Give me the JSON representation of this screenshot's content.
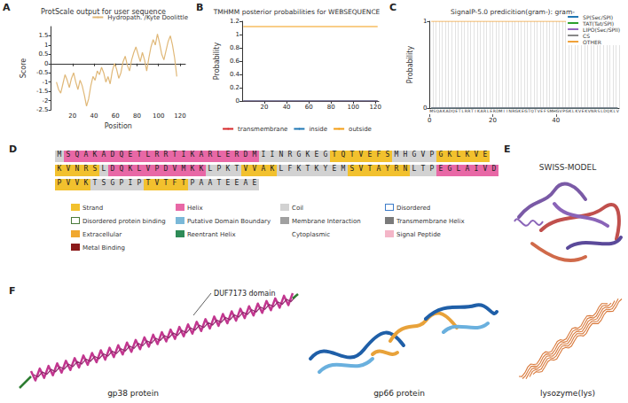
{
  "chart_data": [
    {
      "panel": "A",
      "type": "line",
      "title": "ProtScale output for user sequence",
      "x_label": "Position",
      "y_label": "Score",
      "x": [
        5,
        7,
        9,
        11,
        13,
        15,
        17,
        19,
        21,
        23,
        25,
        27,
        29,
        31,
        33,
        35,
        37,
        39,
        41,
        43,
        45,
        47,
        49,
        51,
        53,
        55,
        57,
        59,
        61,
        63,
        65,
        67,
        69,
        71,
        73,
        75,
        77,
        79,
        81,
        83,
        85,
        87,
        89,
        91,
        93,
        95,
        97,
        99,
        101,
        103,
        105,
        107,
        109,
        111,
        113,
        115,
        117
      ],
      "series": [
        {
          "name": "Hydropath. /Kyte Doolittle",
          "color": "#e0b878",
          "values": [
            -1.0,
            -1.4,
            -1.6,
            -1.1,
            -0.6,
            -0.9,
            -1.3,
            -0.8,
            -0.5,
            -1.0,
            -1.4,
            -0.9,
            -1.2,
            -1.7,
            -2.3,
            -1.9,
            -1.2,
            -0.7,
            -0.9,
            -0.4,
            -0.6,
            -0.2,
            -0.5,
            -1.0,
            -0.7,
            -1.1,
            -0.4,
            0.0,
            -0.3,
            -0.8,
            -0.5,
            0.1,
            0.4,
            -0.1,
            -0.4,
            0.2,
            0.6,
            0.9,
            0.5,
            0.1,
            0.6,
            0.2,
            -0.4,
            0.3,
            0.9,
            1.3,
            1.0,
            1.6,
            1.1,
            0.5,
            0.2,
            0.7,
            1.2,
            1.5,
            1.0,
            0.3,
            -0.7
          ]
        }
      ],
      "xlim": [
        0,
        125
      ],
      "xticks": [
        20,
        40,
        60,
        80,
        100,
        120
      ],
      "ylim": [
        -2.5,
        2
      ],
      "yticks": [
        -2.5,
        -2,
        -1.5,
        -1,
        -0.5,
        0,
        0.5,
        1,
        1.5
      ],
      "legend": "top-right",
      "grid": false
    },
    {
      "panel": "B",
      "type": "line",
      "title": "TMHMM posterior probabilities for WEBSEQUENCE",
      "y_label": "Probability",
      "x": [
        1,
        122
      ],
      "series": [
        {
          "name": "transmembrane",
          "color": "#d62728",
          "values": [
            0,
            0
          ]
        },
        {
          "name": "inside",
          "color": "#1f77b4",
          "values": [
            0,
            0
          ]
        },
        {
          "name": "outside",
          "color": "#f39c12",
          "values": [
            1.12,
            1.12
          ]
        }
      ],
      "xlim": [
        0,
        123
      ],
      "xticks": [
        20,
        40,
        60,
        80,
        100,
        120
      ],
      "ylim": [
        0,
        1.2
      ],
      "yticks": [
        0,
        0.2,
        0.4,
        0.6,
        0.8,
        1,
        1.2
      ],
      "legend": "bottom",
      "grid": false
    },
    {
      "panel": "C",
      "type": "line",
      "title": "SignalP-5.0 predicition(gram-): gram-",
      "y_label": "Probability",
      "categories": [
        "M",
        "S",
        "Q",
        "A",
        "K",
        "A",
        "D",
        "Q",
        "E",
        "T",
        "L",
        "R",
        "R",
        "T",
        "I",
        "K",
        "A",
        "R",
        "L",
        "E",
        "R",
        "D",
        "M",
        "I",
        "I",
        "N",
        "R",
        "G",
        "K",
        "E",
        "G",
        "T",
        "Q",
        "T",
        "V",
        "E",
        "F",
        "S",
        "M",
        "H",
        "G",
        "V",
        "P",
        "G",
        "K",
        "L",
        "K",
        "V",
        "E",
        "K",
        "V",
        "N",
        "R",
        "S",
        "L",
        "D",
        "Q",
        "K",
        "L",
        "V"
      ],
      "series": [
        {
          "name": "SP(Sec/SPI)",
          "color": "#1f77b4",
          "values": [
            0,
            0,
            0,
            0,
            0,
            0,
            0,
            0,
            0,
            0,
            0,
            0,
            0,
            0,
            0,
            0,
            0,
            0,
            0,
            0,
            0,
            0,
            0,
            0,
            0,
            0,
            0,
            0,
            0,
            0,
            0,
            0,
            0,
            0,
            0,
            0,
            0,
            0,
            0,
            0,
            0,
            0,
            0,
            0,
            0,
            0,
            0,
            0,
            0,
            0,
            0,
            0,
            0,
            0,
            0,
            0,
            0,
            0,
            0,
            0
          ]
        },
        {
          "name": "TAT(Tat/SPI)",
          "color": "#2ca02c",
          "values": [
            0,
            0,
            0,
            0,
            0,
            0,
            0,
            0,
            0,
            0,
            0,
            0,
            0,
            0,
            0,
            0,
            0,
            0,
            0,
            0,
            0,
            0,
            0,
            0,
            0,
            0,
            0,
            0,
            0,
            0,
            0,
            0,
            0,
            0,
            0,
            0,
            0,
            0,
            0,
            0,
            0,
            0,
            0,
            0,
            0,
            0,
            0,
            0,
            0,
            0,
            0,
            0,
            0,
            0,
            0,
            0,
            0,
            0,
            0,
            0
          ]
        },
        {
          "name": "LIPO(Sec/SPII)",
          "color": "#9467bd",
          "values": [
            0,
            0,
            0,
            0,
            0,
            0,
            0,
            0,
            0,
            0,
            0,
            0,
            0,
            0,
            0,
            0,
            0,
            0,
            0,
            0,
            0,
            0,
            0,
            0,
            0,
            0,
            0,
            0,
            0,
            0,
            0,
            0,
            0,
            0,
            0,
            0,
            0,
            0,
            0,
            0,
            0,
            0,
            0,
            0,
            0,
            0,
            0,
            0,
            0,
            0,
            0,
            0,
            0,
            0,
            0,
            0,
            0,
            0,
            0,
            0
          ]
        },
        {
          "name": "CS",
          "color": "#888888",
          "values": [
            0,
            0,
            0,
            0,
            0,
            0,
            0,
            0,
            0,
            0,
            0,
            0,
            0,
            0,
            0,
            0,
            0,
            0,
            0,
            0,
            0,
            0,
            0,
            0,
            0,
            0,
            0,
            0,
            0,
            0,
            0,
            0,
            0,
            0,
            0,
            0,
            0,
            0,
            0,
            0,
            0,
            0,
            0,
            0,
            0,
            0,
            0,
            0,
            0,
            0,
            0,
            0,
            0,
            0,
            0,
            0,
            0,
            0,
            0,
            0
          ]
        },
        {
          "name": "OTHER",
          "color": "#f0a23a",
          "values": [
            1,
            1,
            1,
            1,
            1,
            1,
            1,
            1,
            1,
            1,
            1,
            1,
            1,
            1,
            1,
            1,
            1,
            1,
            1,
            1,
            1,
            1,
            1,
            1,
            1,
            1,
            1,
            1,
            1,
            1,
            1,
            1,
            1,
            1,
            1,
            1,
            1,
            1,
            1,
            1,
            1,
            1,
            1,
            1,
            1,
            1,
            1,
            1,
            1,
            1,
            1,
            1,
            1,
            1,
            1,
            1,
            1,
            1,
            1,
            1
          ]
        }
      ],
      "xlim": [
        0,
        60
      ],
      "xticks": [
        0,
        20,
        40
      ],
      "ylim": [
        0,
        1
      ],
      "yticks": [
        0,
        1
      ],
      "legend": "top-right",
      "grid": true
    }
  ],
  "sequence_panel": {
    "panel": "D",
    "rows": [
      [
        {
          "type": "Coil",
          "residues": "M"
        },
        {
          "type": "Helix",
          "residues": "SQAKADQETLRRTIKARLERDM"
        },
        {
          "type": "Coil",
          "residues": "IINRGKEG"
        },
        {
          "type": "Strand",
          "residues": "TQTVEFS"
        },
        {
          "type": "Coil",
          "residues": "MHGVP"
        },
        {
          "type": "Strand",
          "residues": "GKLKVE"
        }
      ],
      [
        {
          "type": "Strand",
          "residues": "KVNRS"
        },
        {
          "type": "Coil",
          "residues": "L"
        },
        {
          "type": "Helix",
          "residues": "DQKLVPDVMKK"
        },
        {
          "type": "Coil",
          "residues": "LPKT"
        },
        {
          "type": "Strand",
          "residues": "VVAK"
        },
        {
          "type": "Coil",
          "residues": "LFKTKYEM"
        },
        {
          "type": "Strand",
          "residues": "SVTAYRN"
        },
        {
          "type": "Coil",
          "residues": "LTP"
        },
        {
          "type": "Helix",
          "residues": "EGLAIVD"
        }
      ],
      [
        {
          "type": "Strand",
          "residues": "PVVK"
        },
        {
          "type": "Coil",
          "residues": "TSGPIP"
        },
        {
          "type": "Strand",
          "residues": "TVTFT"
        },
        {
          "type": "Coil",
          "residues": "PAATEEAE"
        }
      ]
    ],
    "legend": [
      {
        "label": "Strand",
        "color": "#f2c12e"
      },
      {
        "label": "Helix",
        "color": "#e868a6"
      },
      {
        "label": "Coil",
        "color": "#d2d2d2"
      },
      {
        "label": "Disordered",
        "color": "#3d7cc9",
        "marker": "outline"
      },
      {
        "label": "Disordered protein binding",
        "color": "#4a7a3a",
        "marker": "outline"
      },
      {
        "label": "Putative Domain Boundary",
        "color": "#7ab8d8"
      },
      {
        "label": "Membrane Interaction",
        "color": "#a0a0a0"
      },
      {
        "label": "Transmembrane Helix",
        "color": "#7a7a7a"
      },
      {
        "label": "Extracellular",
        "color": "#f0a830"
      },
      {
        "label": "Reentrant Helix",
        "color": "#2e8b57"
      },
      {
        "label": "Cytoplasmic",
        "color": "#ffffff",
        "marker": "outline"
      },
      {
        "label": "Signal Peptide",
        "color": "#f4b6c8"
      },
      {
        "label": "Metal Binding",
        "color": "#8b1a1a"
      }
    ]
  },
  "structure_panels": [
    {
      "panel": "E",
      "title": "SWISS-MODEL"
    },
    {
      "panel": "F",
      "labels": [
        "gp38 protein",
        "gp66 protein",
        "lysozyme(lys)"
      ],
      "annotation": "DUF7173 domain"
    }
  ]
}
